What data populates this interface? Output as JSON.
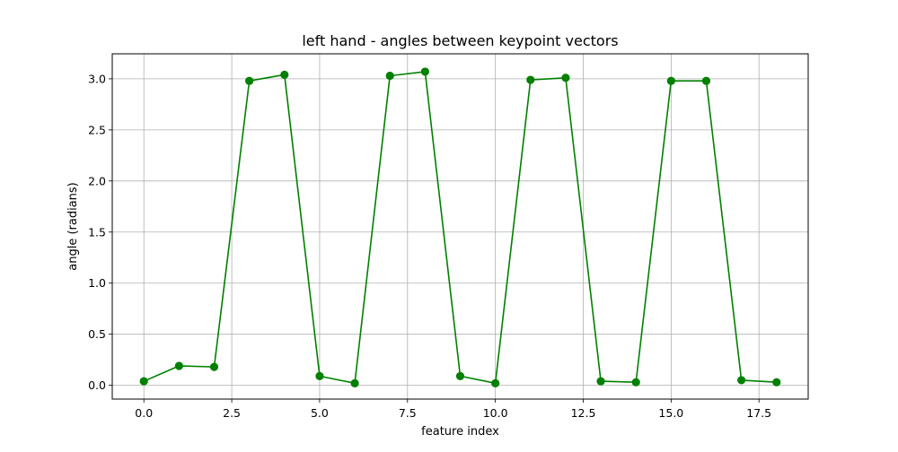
{
  "chart_data": {
    "type": "line",
    "title": "left hand - angles between keypoint vectors",
    "xlabel": "feature index",
    "ylabel": "angle (radians)",
    "xlim": [
      -0.9,
      18.9
    ],
    "ylim": [
      -0.135,
      3.245
    ],
    "x_ticks": [
      0.0,
      2.5,
      5.0,
      7.5,
      10.0,
      12.5,
      15.0,
      17.5
    ],
    "x_tick_labels": [
      "0.0",
      "2.5",
      "5.0",
      "7.5",
      "10.0",
      "12.5",
      "15.0",
      "17.5"
    ],
    "y_ticks": [
      0.0,
      0.5,
      1.0,
      1.5,
      2.0,
      2.5,
      3.0
    ],
    "y_tick_labels": [
      "0.0",
      "0.5",
      "1.0",
      "1.5",
      "2.0",
      "2.5",
      "3.0"
    ],
    "grid": true,
    "line_color": "#008000",
    "marker": "circle",
    "x": [
      0,
      1,
      2,
      3,
      4,
      5,
      6,
      7,
      8,
      9,
      10,
      11,
      12,
      13,
      14,
      15,
      16,
      17,
      18
    ],
    "values": [
      0.04,
      0.19,
      0.18,
      2.98,
      3.04,
      0.09,
      0.02,
      3.03,
      3.07,
      0.09,
      0.02,
      2.99,
      3.01,
      0.04,
      0.03,
      2.98,
      2.98,
      0.05,
      0.03
    ]
  }
}
